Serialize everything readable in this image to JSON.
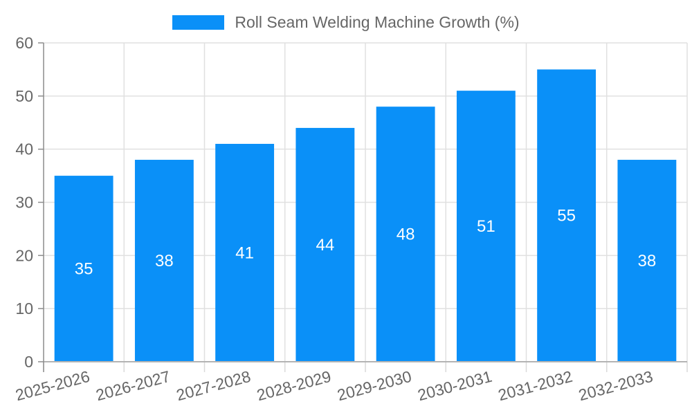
{
  "chart_data": {
    "type": "bar",
    "title": "",
    "legend": "Roll Seam Welding Machine Growth (%)",
    "legend_position": "top-center",
    "categories": [
      "2025-2026",
      "2026-2027",
      "2027-2028",
      "2028-2029",
      "2029-2030",
      "2030-2031",
      "2031-2032",
      "2032-2033"
    ],
    "values": [
      35,
      38,
      41,
      44,
      48,
      51,
      55,
      38
    ],
    "xlabel": "",
    "ylabel": "",
    "ylim": [
      0,
      60
    ],
    "yticks": [
      0,
      10,
      20,
      30,
      40,
      50,
      60
    ],
    "grid": "both",
    "x_tick_rotation_deg": -15,
    "value_labels": "inside-center",
    "colors": {
      "bar": "#0A90F8",
      "value_label": "#ffffff",
      "tick_text": "#666666",
      "grid": "#e0e0e0",
      "y_axis": "#8c8c8c",
      "x_axis": "#b3b3b3",
      "x_tick": "#d9d9d9",
      "background": "#ffffff"
    }
  }
}
